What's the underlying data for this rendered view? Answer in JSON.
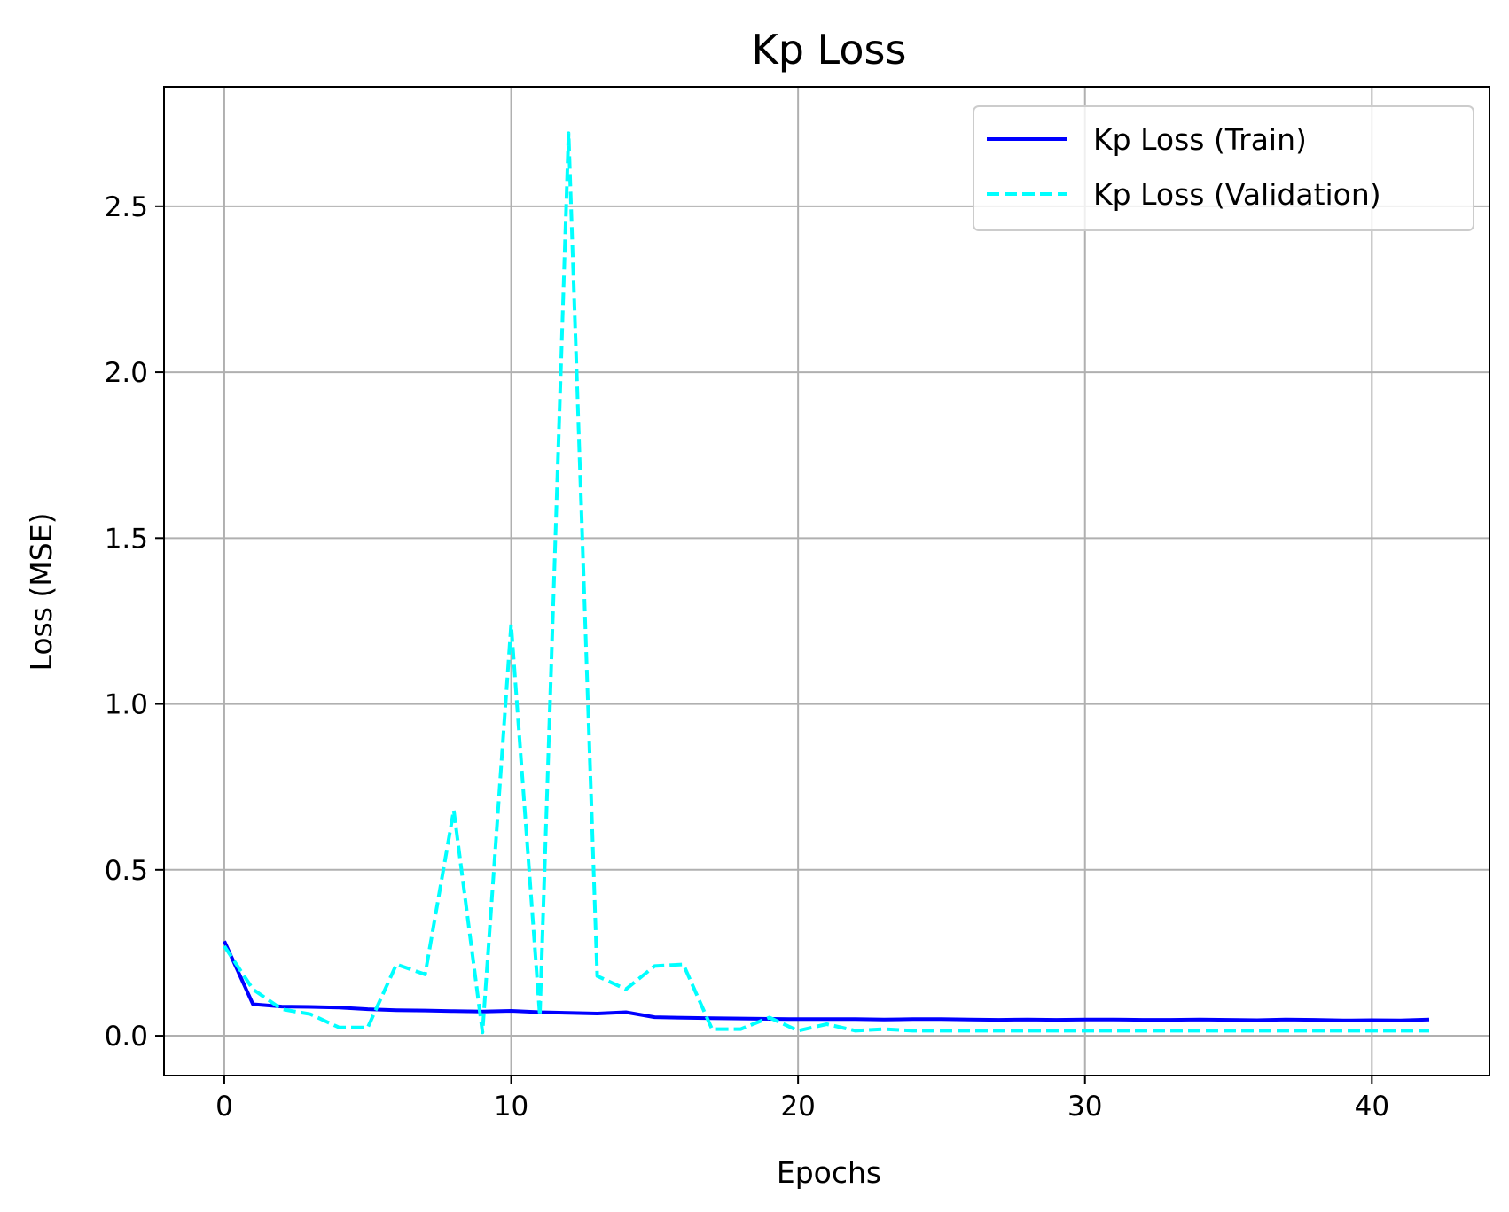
{
  "chart_data": {
    "type": "line",
    "title": "Kp Loss",
    "xlabel": "Epochs",
    "ylabel": "Loss (MSE)",
    "xlim": [
      -2.1,
      44.1
    ],
    "ylim": [
      -0.12,
      2.86
    ],
    "xticks": [
      0,
      10,
      20,
      30,
      40
    ],
    "yticks": [
      0.0,
      0.5,
      1.0,
      1.5,
      2.0,
      2.5
    ],
    "xtick_labels": [
      "0",
      "10",
      "20",
      "30",
      "40"
    ],
    "ytick_labels": [
      "0.0",
      "0.5",
      "1.0",
      "1.5",
      "2.0",
      "2.5"
    ],
    "grid": true,
    "legend_position": "top-right",
    "x": [
      0,
      1,
      2,
      3,
      4,
      5,
      6,
      7,
      8,
      9,
      10,
      11,
      12,
      13,
      14,
      15,
      16,
      17,
      18,
      19,
      20,
      21,
      22,
      23,
      24,
      25,
      26,
      27,
      28,
      29,
      30,
      31,
      32,
      33,
      34,
      35,
      36,
      37,
      38,
      39,
      40,
      41,
      42
    ],
    "series": [
      {
        "name": "Kp Loss (Train)",
        "color": "#0000ff",
        "style": "solid",
        "values": [
          0.285,
          0.095,
          0.088,
          0.087,
          0.085,
          0.08,
          0.077,
          0.076,
          0.074,
          0.073,
          0.075,
          0.071,
          0.069,
          0.067,
          0.071,
          0.056,
          0.054,
          0.053,
          0.052,
          0.051,
          0.05,
          0.05,
          0.05,
          0.049,
          0.05,
          0.05,
          0.049,
          0.048,
          0.049,
          0.048,
          0.049,
          0.049,
          0.048,
          0.048,
          0.049,
          0.048,
          0.047,
          0.049,
          0.048,
          0.046,
          0.047,
          0.046,
          0.049
        ]
      },
      {
        "name": "Kp Loss (Validation)",
        "color": "#00ffff",
        "style": "dashed",
        "values": [
          0.27,
          0.14,
          0.08,
          0.065,
          0.025,
          0.025,
          0.215,
          0.185,
          0.68,
          0.01,
          1.24,
          0.06,
          2.72,
          0.18,
          0.14,
          0.21,
          0.215,
          0.02,
          0.02,
          0.055,
          0.015,
          0.035,
          0.015,
          0.02,
          0.015,
          0.015,
          0.015,
          0.015,
          0.015,
          0.015,
          0.015,
          0.015,
          0.015,
          0.015,
          0.015,
          0.015,
          0.015,
          0.015,
          0.015,
          0.015,
          0.015,
          0.015,
          0.015
        ]
      }
    ]
  }
}
